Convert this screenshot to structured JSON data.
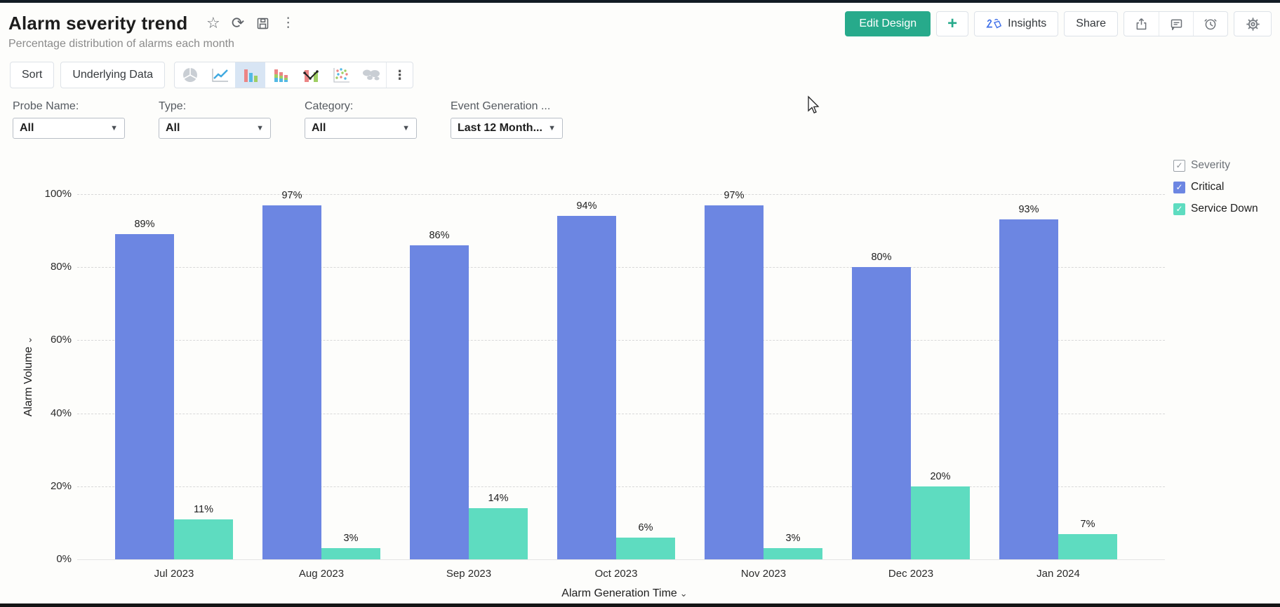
{
  "header": {
    "title": "Alarm severity trend",
    "subtitle": "Percentage distribution of alarms each month",
    "actions": {
      "edit_design": "Edit Design",
      "add": "+",
      "insights": "Insights",
      "share": "Share"
    }
  },
  "toolbar": {
    "sort": "Sort",
    "underlying_data": "Underlying Data",
    "chart_types": [
      "pie",
      "line",
      "bar",
      "stacked-bar",
      "bar-line-combo",
      "scatter",
      "map"
    ],
    "selected_chart_type": "bar"
  },
  "filters": [
    {
      "label": "Probe Name:",
      "value": "All"
    },
    {
      "label": "Type:",
      "value": "All"
    },
    {
      "label": "Category:",
      "value": "All"
    },
    {
      "label": "Event Generation ...",
      "value": "Last 12 Month..."
    }
  ],
  "legend": {
    "group_label": "Severity",
    "items": [
      {
        "label": "Critical",
        "color": "#6c86e2",
        "checked": true
      },
      {
        "label": "Service Down",
        "color": "#5edcc0",
        "checked": true
      }
    ]
  },
  "chart_data": {
    "type": "bar",
    "title": "Alarm severity trend",
    "categories": [
      "Jul 2023",
      "Aug 2023",
      "Sep 2023",
      "Oct 2023",
      "Nov 2023",
      "Dec 2023",
      "Jan 2024"
    ],
    "series": [
      {
        "name": "Critical",
        "color": "#6c86e2",
        "values": [
          89,
          97,
          86,
          94,
          97,
          80,
          93
        ]
      },
      {
        "name": "Service Down",
        "color": "#5edcc0",
        "values": [
          11,
          3,
          14,
          6,
          3,
          20,
          7
        ]
      }
    ],
    "xlabel": "Alarm Generation Time",
    "ylabel": "Alarm Volume",
    "ylim": [
      0,
      100
    ],
    "yticks": [
      "0%",
      "20%",
      "40%",
      "60%",
      "80%",
      "100%"
    ],
    "grid": true,
    "legend_position": "right",
    "value_suffix": "%"
  },
  "colors": {
    "accent_green": "#27aa8b",
    "insights_icon_blue": "#3b6de8",
    "selected_icon_bg": "#d8e5f4"
  }
}
